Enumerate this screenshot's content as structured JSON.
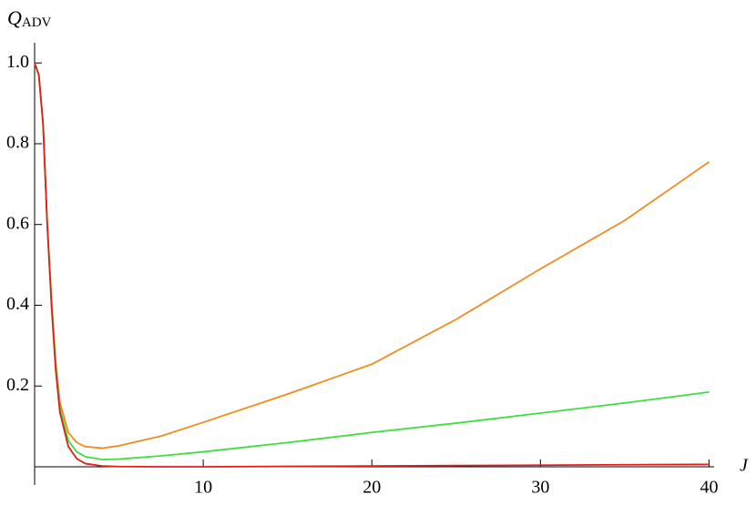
{
  "chart_data": {
    "type": "line",
    "ylabel": "Q",
    "ylabel_sub": "ADV",
    "xlabel": "J",
    "x": [
      0,
      0.25,
      0.5,
      0.75,
      1,
      1.25,
      1.5,
      2,
      2.5,
      3,
      4,
      5,
      7.5,
      10,
      15,
      20,
      25,
      30,
      35,
      40
    ],
    "series": [
      {
        "name": "orange",
        "color": "#f08c1e",
        "values": [
          1.0,
          0.97,
          0.85,
          0.6,
          0.42,
          0.26,
          0.16,
          0.085,
          0.06,
          0.05,
          0.046,
          0.052,
          0.076,
          0.11,
          0.18,
          0.254,
          0.365,
          0.49,
          0.61,
          0.755
        ]
      },
      {
        "name": "green",
        "color": "#3ce03c",
        "values": [
          1.0,
          0.97,
          0.85,
          0.6,
          0.41,
          0.25,
          0.145,
          0.065,
          0.037,
          0.025,
          0.018,
          0.019,
          0.027,
          0.037,
          0.06,
          0.085,
          0.108,
          0.133,
          0.158,
          0.185
        ]
      },
      {
        "name": "red",
        "color": "#e01e1e",
        "values": [
          1.0,
          0.97,
          0.85,
          0.6,
          0.4,
          0.24,
          0.135,
          0.05,
          0.02,
          0.008,
          0.002,
          0.0005,
          0,
          0,
          0.001,
          0.002,
          0.003,
          0.004,
          0.005,
          0.006
        ]
      }
    ],
    "xlim": [
      0,
      40.3
    ],
    "ylim": [
      0,
      1.05
    ],
    "xticks": [
      10,
      20,
      30,
      40
    ],
    "yticks": [
      0.2,
      0.4,
      0.6,
      0.8,
      {
        "value": 1,
        "label": "1.0"
      }
    ]
  }
}
